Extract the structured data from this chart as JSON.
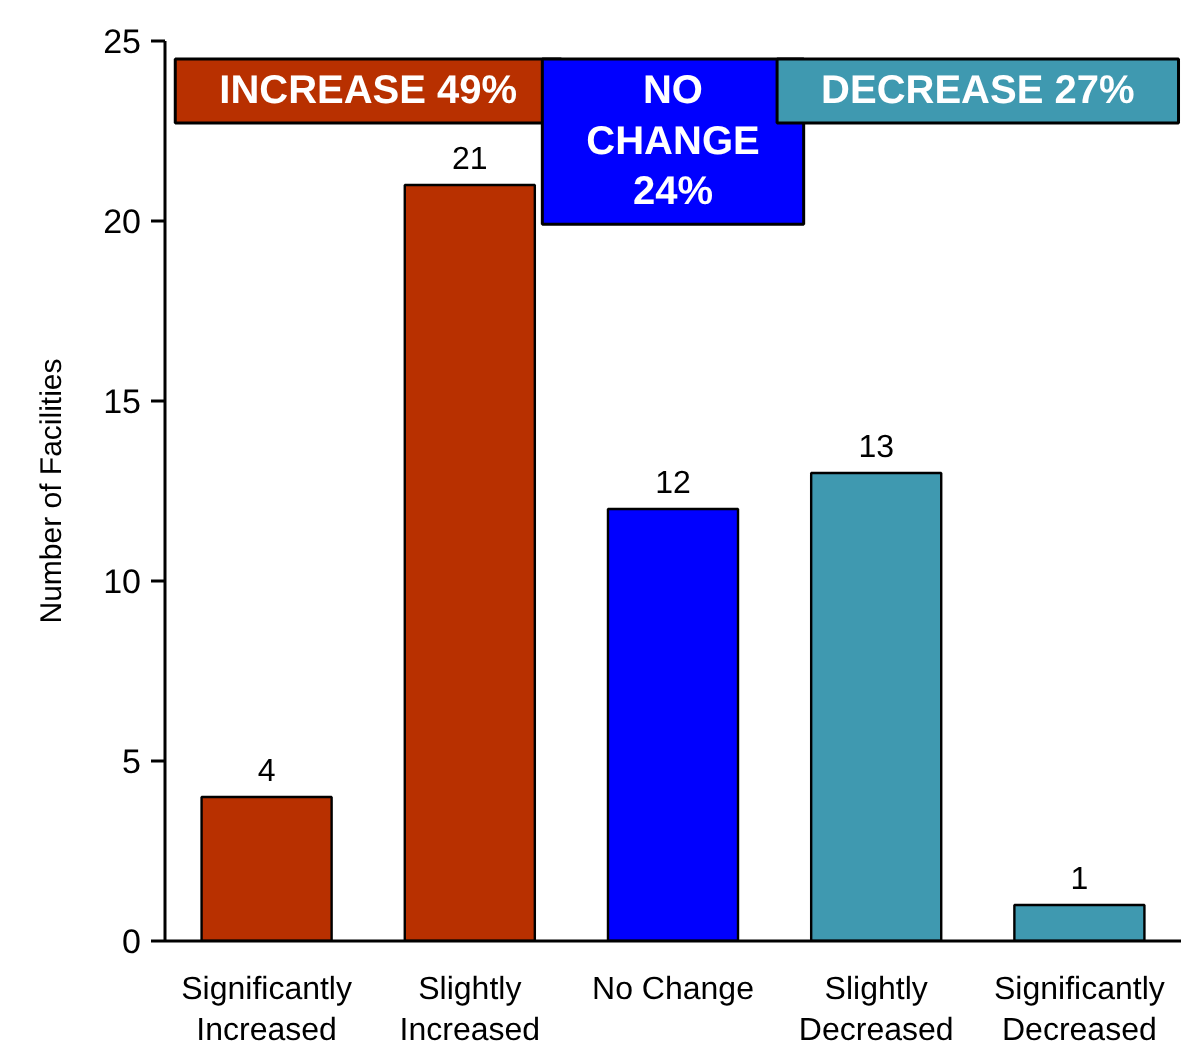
{
  "chart_data": {
    "type": "bar",
    "ylabel": "Number of Facilities",
    "categories": [
      "Significantly Increased",
      "Slightly Increased",
      "No Change",
      "Slightly Decreased",
      "Significantly Decreased"
    ],
    "values": [
      4,
      21,
      12,
      13,
      1
    ],
    "colors": [
      "#b83000",
      "#b83000",
      "#0000ff",
      "#3f99b0",
      "#3f99b0"
    ],
    "ylim": [
      0,
      25
    ],
    "yticks": [
      0,
      5,
      10,
      15,
      20,
      25
    ],
    "grid": false,
    "data_labels": true,
    "annotations": [
      "INCREASE 49%",
      "NO CHANGE 24%",
      "DECREASE 27%"
    ]
  }
}
